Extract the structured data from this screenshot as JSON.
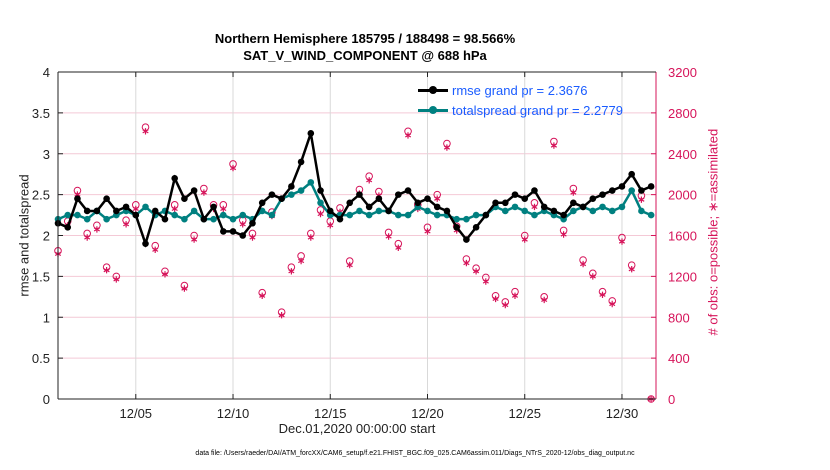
{
  "chart_data": {
    "type": "line",
    "title": "Northern Hemisphere 185795 / 188498 = 98.566%",
    "subtitle": "SAT_V_WIND_COMPONENT @ 688 hPa",
    "xlabel": "Dec.01,2020 00:00:00 start",
    "ylabel": "rmse and totalspread",
    "ylabel_right": "# of obs: o=possible; ∗=assimilated",
    "footer": "data file: /Users/raeder/DAI/ATM_forcXX/CAM6_setup/f.e21.FHIST_BGC.f09_025.CAM6assim.011/Diags_NTrS_2020-12/obs_diag_output.nc",
    "xlim": [
      "12/01 00Z",
      "12/31 18Z"
    ],
    "xtick_labels": [
      "12/05",
      "12/10",
      "12/15",
      "12/20",
      "12/25",
      "12/30"
    ],
    "ylim": [
      0,
      4
    ],
    "ytick_labels": [
      "0",
      "0.5",
      "1",
      "1.5",
      "2",
      "2.5",
      "3",
      "3.5",
      "4"
    ],
    "ylim_right": [
      0,
      3200
    ],
    "ytick_labels_right": [
      "0",
      "400",
      "800",
      "1200",
      "1600",
      "2000",
      "2400",
      "2800",
      "3200"
    ],
    "grid": true,
    "legend_position": "top-right",
    "colors": {
      "rmse": "#000000",
      "spread": "#008080",
      "obs": "#d6145a",
      "legend_text": "#1a5cff",
      "grid_v": "#d9d9d9",
      "grid_h": "#f4c9d6"
    },
    "x": [
      "12/01 00Z",
      "12/01 12Z",
      "12/02 00Z",
      "12/02 12Z",
      "12/03 00Z",
      "12/03 12Z",
      "12/04 00Z",
      "12/04 12Z",
      "12/05 00Z",
      "12/05 12Z",
      "12/06 00Z",
      "12/06 12Z",
      "12/07 00Z",
      "12/07 12Z",
      "12/08 00Z",
      "12/08 12Z",
      "12/09 00Z",
      "12/09 12Z",
      "12/10 00Z",
      "12/10 12Z",
      "12/11 00Z",
      "12/11 12Z",
      "12/12 00Z",
      "12/12 12Z",
      "12/13 00Z",
      "12/13 12Z",
      "12/14 00Z",
      "12/14 12Z",
      "12/15 00Z",
      "12/15 12Z",
      "12/16 00Z",
      "12/16 12Z",
      "12/17 00Z",
      "12/17 12Z",
      "12/18 00Z",
      "12/18 12Z",
      "12/19 00Z",
      "12/19 12Z",
      "12/20 00Z",
      "12/20 12Z",
      "12/21 00Z",
      "12/21 12Z",
      "12/22 00Z",
      "12/22 12Z",
      "12/23 00Z",
      "12/23 12Z",
      "12/24 00Z",
      "12/24 12Z",
      "12/25 00Z",
      "12/25 12Z",
      "12/26 00Z",
      "12/26 12Z",
      "12/27 00Z",
      "12/27 12Z",
      "12/28 00Z",
      "12/28 12Z",
      "12/29 00Z",
      "12/29 12Z",
      "12/30 00Z",
      "12/30 12Z",
      "12/31 00Z",
      "12/31 12Z"
    ],
    "series": [
      {
        "name": "rmse grand pr = 2.3676",
        "axis": "left",
        "values": [
          2.15,
          2.1,
          2.45,
          2.3,
          2.3,
          2.45,
          2.3,
          2.35,
          2.25,
          1.9,
          2.3,
          2.2,
          2.7,
          2.45,
          2.55,
          2.2,
          2.35,
          2.05,
          2.05,
          2.0,
          2.15,
          2.4,
          2.5,
          2.45,
          2.6,
          2.9,
          3.25,
          2.55,
          2.3,
          2.2,
          2.4,
          2.5,
          2.35,
          2.45,
          2.3,
          2.5,
          2.55,
          2.4,
          2.45,
          2.35,
          2.3,
          2.1,
          1.95,
          2.1,
          2.25,
          2.4,
          2.4,
          2.5,
          2.45,
          2.55,
          2.35,
          2.3,
          2.25,
          2.4,
          2.35,
          2.45,
          2.5,
          2.55,
          2.6,
          2.75,
          2.55,
          2.6
        ]
      },
      {
        "name": "totalspread grand pr = 2.2779",
        "axis": "left",
        "values": [
          2.2,
          2.25,
          2.25,
          2.2,
          2.3,
          2.2,
          2.25,
          2.3,
          2.25,
          2.35,
          2.25,
          2.3,
          2.25,
          2.2,
          2.3,
          2.2,
          2.2,
          2.25,
          2.2,
          2.25,
          2.2,
          2.3,
          2.25,
          2.45,
          2.5,
          2.55,
          2.65,
          2.4,
          2.25,
          2.25,
          2.25,
          2.3,
          2.25,
          2.3,
          2.3,
          2.25,
          2.25,
          2.35,
          2.3,
          2.25,
          2.25,
          2.2,
          2.2,
          2.25,
          2.25,
          2.35,
          2.3,
          2.35,
          2.3,
          2.25,
          2.3,
          2.25,
          2.2,
          2.3,
          2.35,
          2.3,
          2.35,
          2.3,
          2.35,
          2.55,
          2.3,
          2.25
        ]
      },
      {
        "name": "possible",
        "axis": "right",
        "marker": "o",
        "values": [
          1450,
          1740,
          2040,
          1620,
          1700,
          1290,
          1200,
          1750,
          1900,
          2660,
          1500,
          1250,
          1900,
          1110,
          1600,
          2060,
          1900,
          1900,
          2300,
          1750,
          1620,
          1040,
          1830,
          850,
          1290,
          1400,
          1620,
          1850,
          1740,
          1870,
          1350,
          2050,
          2180,
          2030,
          1630,
          1520,
          2620,
          1900,
          1680,
          2000,
          2500,
          1690,
          1370,
          1280,
          1190,
          1010,
          950,
          1050,
          1600,
          1920,
          1000,
          2520,
          1650,
          2060,
          1360,
          1230,
          1050,
          960,
          1580,
          1310,
          1990,
          0
        ]
      },
      {
        "name": "assimilated",
        "axis": "right",
        "marker": "*",
        "values": [
          1420,
          1700,
          2000,
          1580,
          1660,
          1260,
          1170,
          1710,
          1860,
          2620,
          1460,
          1220,
          1860,
          1080,
          1560,
          2020,
          1860,
          1860,
          2260,
          1710,
          1580,
          1010,
          1790,
          820,
          1250,
          1350,
          1580,
          1810,
          1700,
          1830,
          1310,
          2010,
          2140,
          1990,
          1590,
          1480,
          2580,
          1860,
          1640,
          1960,
          2460,
          1650,
          1330,
          1250,
          1150,
          980,
          920,
          1010,
          1560,
          1880,
          970,
          2480,
          1610,
          2020,
          1320,
          1200,
          1020,
          930,
          1540,
          1270,
          1950,
          0
        ]
      }
    ]
  }
}
